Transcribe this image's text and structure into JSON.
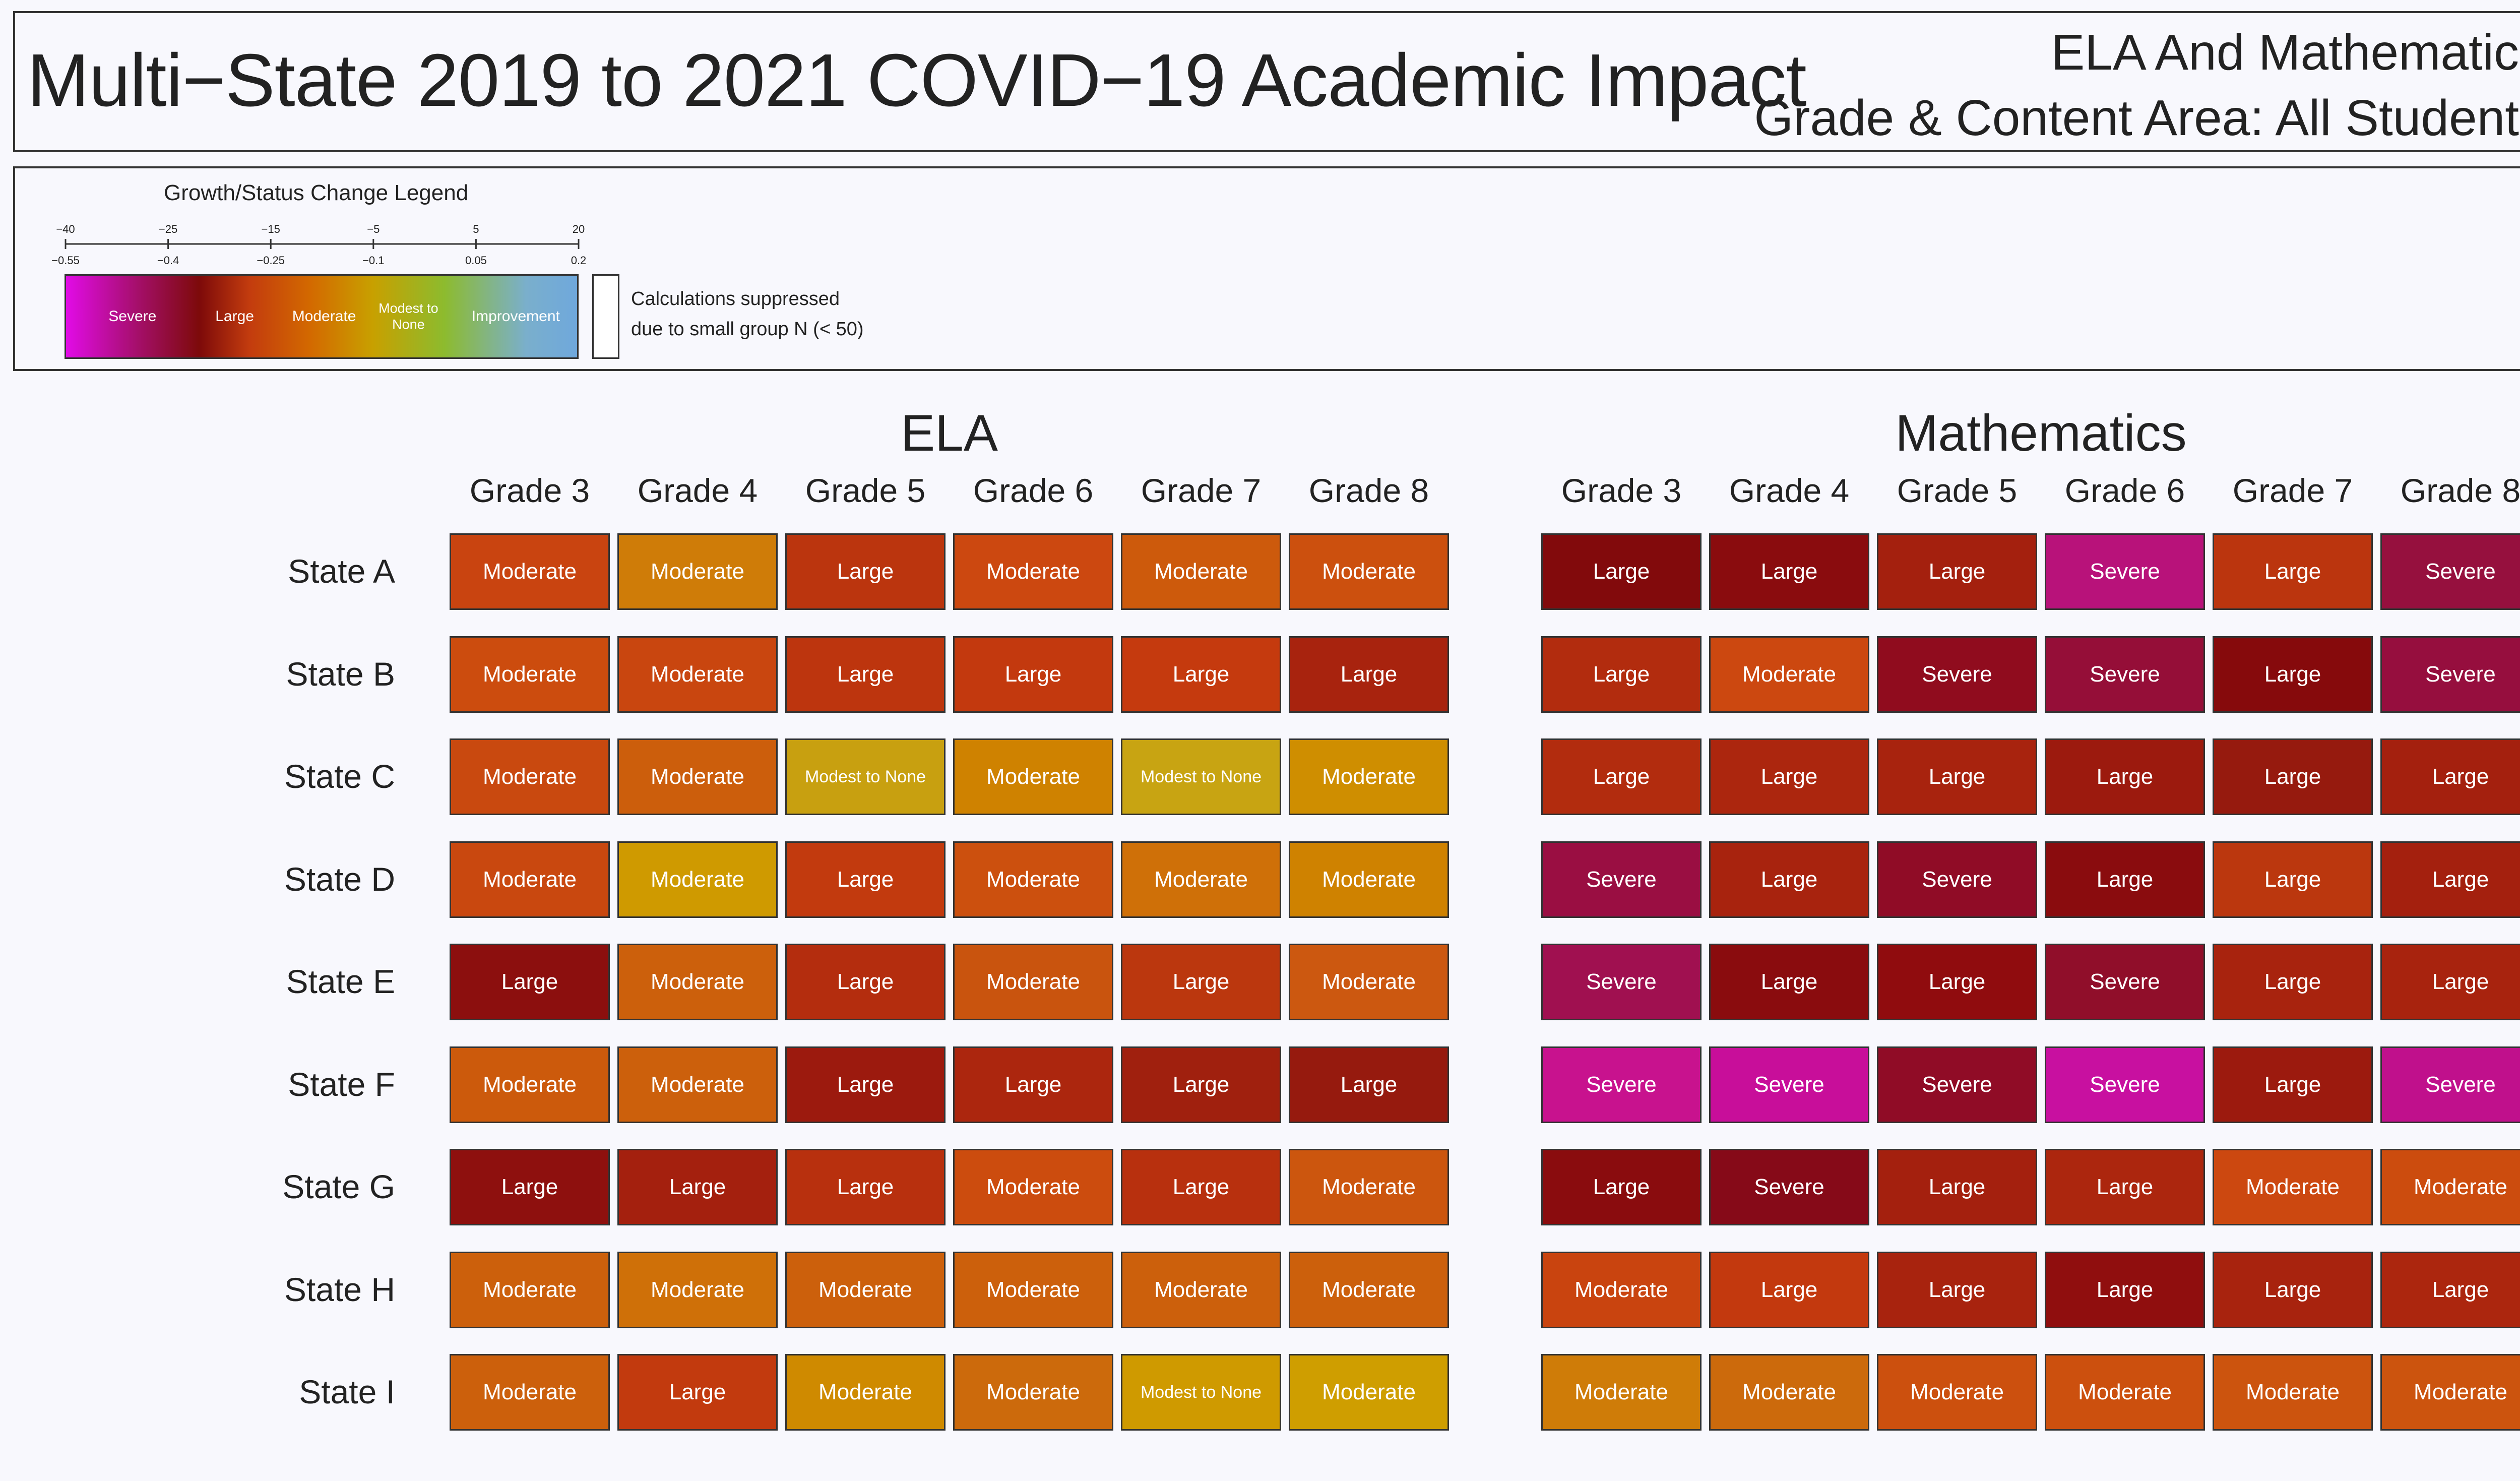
{
  "title": {
    "main": "Multi−State 2019 to 2021 COVID−19 Academic Impact",
    "sub1": "ELA And Mathematics",
    "sub2": "Grade & Content Area: All Students"
  },
  "legend": {
    "title": "Growth/Status Change Legend",
    "top_ticks": [
      "−40",
      "−25",
      "−15",
      "−5",
      "5",
      "20"
    ],
    "bottom_ticks": [
      "−0.55",
      "−0.4",
      "−0.25",
      "−0.1",
      "0.05",
      "0.2"
    ],
    "categories": [
      "Severe",
      "Large",
      "Moderate",
      "Modest to None",
      "Improvement"
    ],
    "suppressed_line1": "Calculations suppressed",
    "suppressed_line2": "due to small group N (< 50)"
  },
  "chart_data": {
    "type": "heatmap",
    "title": "Multi−State 2019 to 2021 COVID−19 Academic Impact",
    "rows": [
      "State A",
      "State B",
      "State C",
      "State D",
      "State E",
      "State F",
      "State G",
      "State H",
      "State I"
    ],
    "columns": [
      "Grade 3",
      "Grade 4",
      "Grade 5",
      "Grade 6",
      "Grade 7",
      "Grade 8"
    ],
    "panels": [
      {
        "subject": "ELA",
        "values": [
          [
            "Moderate",
            "Moderate",
            "Large",
            "Moderate",
            "Moderate",
            "Moderate"
          ],
          [
            "Moderate",
            "Moderate",
            "Large",
            "Large",
            "Large",
            "Large"
          ],
          [
            "Moderate",
            "Moderate",
            "Modest to None",
            "Moderate",
            "Modest to None",
            "Moderate"
          ],
          [
            "Moderate",
            "Moderate",
            "Large",
            "Moderate",
            "Moderate",
            "Moderate"
          ],
          [
            "Large",
            "Moderate",
            "Large",
            "Moderate",
            "Large",
            "Moderate"
          ],
          [
            "Moderate",
            "Moderate",
            "Large",
            "Large",
            "Large",
            "Large"
          ],
          [
            "Large",
            "Large",
            "Large",
            "Moderate",
            "Large",
            "Moderate"
          ],
          [
            "Moderate",
            "Moderate",
            "Moderate",
            "Moderate",
            "Moderate",
            "Moderate"
          ],
          [
            "Moderate",
            "Large",
            "Moderate",
            "Moderate",
            "Modest to None",
            "Moderate"
          ]
        ],
        "colors": [
          [
            "#c94410",
            "#cf7c08",
            "#bb350e",
            "#cc4810",
            "#cd5a0c",
            "#cc500e"
          ],
          [
            "#cc4c0e",
            "#c9460f",
            "#bd350e",
            "#c3390e",
            "#c53a0e",
            "#a8230e"
          ],
          [
            "#c9490f",
            "#cc5e0c",
            "#c8a010",
            "#cf8200",
            "#c8a412",
            "#cf8e00"
          ],
          [
            "#c9480f",
            "#cf9a00",
            "#c23a0e",
            "#cc500e",
            "#cf7008",
            "#cf8200"
          ],
          [
            "#8c0f0e",
            "#cc600c",
            "#b42d0e",
            "#c9540e",
            "#bb370e",
            "#cc5810"
          ],
          [
            "#cc5a0c",
            "#cc600c",
            "#9c1a0e",
            "#ac260e",
            "#a0200e",
            "#961a0e"
          ],
          [
            "#8e100e",
            "#a4200e",
            "#b8300e",
            "#cc4c0e",
            "#b8300e",
            "#cc560e"
          ],
          [
            "#cc600c",
            "#cf7008",
            "#cc600c",
            "#cc600c",
            "#cc600c",
            "#cc600c"
          ],
          [
            "#cc600c",
            "#c23a0e",
            "#cf8a00",
            "#cc6a0c",
            "#cf9a00",
            "#cf9e00"
          ]
        ]
      },
      {
        "subject": "Mathematics",
        "values": [
          [
            "Large",
            "Large",
            "Large",
            "Severe",
            "Large",
            "Severe"
          ],
          [
            "Large",
            "Moderate",
            "Severe",
            "Severe",
            "Large",
            "Severe"
          ],
          [
            "Large",
            "Large",
            "Large",
            "Large",
            "Large",
            "Large"
          ],
          [
            "Severe",
            "Large",
            "Severe",
            "Large",
            "Large",
            "Large"
          ],
          [
            "Severe",
            "Large",
            "Large",
            "Severe",
            "Large",
            "Large"
          ],
          [
            "Severe",
            "Severe",
            "Severe",
            "Severe",
            "Large",
            "Severe"
          ],
          [
            "Large",
            "Severe",
            "Large",
            "Large",
            "Moderate",
            "Moderate"
          ],
          [
            "Moderate",
            "Large",
            "Large",
            "Large",
            "Large",
            "Large"
          ],
          [
            "Moderate",
            "Moderate",
            "Moderate",
            "Moderate",
            "Moderate",
            "Moderate"
          ]
        ],
        "colors": [
          [
            "#820a0c",
            "#8a0c0e",
            "#a4200e",
            "#b8127a",
            "#bb350e",
            "#96103e"
          ],
          [
            "#b22c0e",
            "#cc4810",
            "#900c1e",
            "#950e38",
            "#860a0c",
            "#960e3e"
          ],
          [
            "#b22c0e",
            "#ac260e",
            "#a8230e",
            "#9c1a0e",
            "#961a0e",
            "#a4200e"
          ],
          [
            "#9a0e42",
            "#a8230e",
            "#900c26",
            "#8a0c0e",
            "#bb370e",
            "#a4200e"
          ],
          [
            "#a01050",
            "#8a0c0e",
            "#900c0e",
            "#900e2a",
            "#a8230e",
            "#a8230e"
          ],
          [
            "#c8128e",
            "#c80e9a",
            "#900c26",
            "#c810a0",
            "#9c1a0e",
            "#c0108c"
          ],
          [
            "#8a0c0e",
            "#860a18",
            "#a4200e",
            "#ac260e",
            "#cc4810",
            "#cc4c0e"
          ],
          [
            "#c9440f",
            "#c3390e",
            "#a8230e",
            "#900e0e",
            "#a8230e",
            "#ac260e"
          ],
          [
            "#cf7c08",
            "#cc6a0c",
            "#cc500e",
            "#cc500e",
            "#cc540e",
            "#cc540e"
          ]
        ]
      }
    ]
  }
}
